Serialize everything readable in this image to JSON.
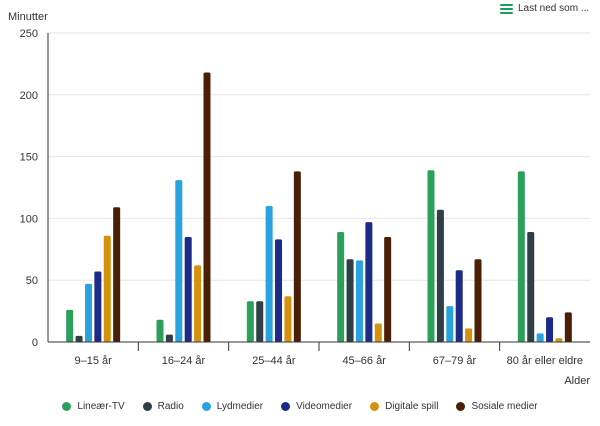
{
  "toolbar": {
    "download_label": "Last ned som ..."
  },
  "chart_data": {
    "type": "bar",
    "ylabel": "Minutter",
    "xlabel": "Alder",
    "ylim": [
      0,
      250
    ],
    "yticks": [
      0,
      50,
      100,
      150,
      200,
      250
    ],
    "grid": true,
    "legend_position": "bottom",
    "categories": [
      "9–15 år",
      "16–24 år",
      "25–44 år",
      "45–66 år",
      "67–79 år",
      "80 år eller eldre"
    ],
    "series": [
      {
        "name": "Lineær-TV",
        "color": "#2ca05a",
        "values": [
          26,
          18,
          33,
          89,
          139,
          138
        ]
      },
      {
        "name": "Radio",
        "color": "#2e3f46",
        "values": [
          5,
          6,
          33,
          67,
          107,
          89
        ]
      },
      {
        "name": "Lydmedier",
        "color": "#29a3e0",
        "values": [
          47,
          131,
          110,
          66,
          29,
          7
        ]
      },
      {
        "name": "Videomedier",
        "color": "#1c2b87",
        "values": [
          57,
          85,
          83,
          97,
          58,
          20
        ]
      },
      {
        "name": "Digitale spill",
        "color": "#d4920f",
        "values": [
          86,
          62,
          37,
          15,
          11,
          3
        ]
      },
      {
        "name": "Sosiale medier",
        "color": "#4a1f06",
        "values": [
          109,
          218,
          138,
          85,
          67,
          24
        ]
      }
    ]
  }
}
